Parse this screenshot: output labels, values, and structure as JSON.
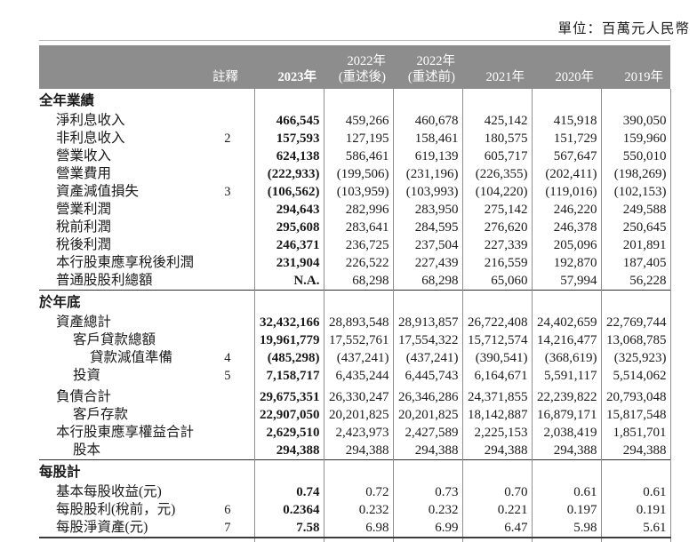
{
  "unit_label": "單位：百萬元人民幣",
  "colors": {
    "header_bar": "#8d8d8d",
    "header_text": "#ffffff",
    "body_text": "#1a1a1a",
    "column_line": "#8f8f8f",
    "section_rule": "#2e2e2e",
    "bottom_rule": "#3c3c3c",
    "top_rule": "#b5b5b5"
  },
  "table": {
    "header": [
      {
        "line1": "",
        "line2": "註釋"
      },
      {
        "line1": "",
        "line2": "2023年"
      },
      {
        "line1": "2022年",
        "line2": "(重述後)"
      },
      {
        "line1": "2022年",
        "line2": "(重述前)"
      },
      {
        "line1": "",
        "line2": "2021年"
      },
      {
        "line1": "",
        "line2": "2020年"
      },
      {
        "line1": "",
        "line2": "2019年"
      }
    ],
    "sections": [
      {
        "title": "全年業績",
        "rows": [
          {
            "label": "淨利息收入",
            "indent": 1,
            "note": "",
            "values": [
              "466,545",
              "459,266",
              "460,678",
              "425,142",
              "415,918",
              "390,050"
            ]
          },
          {
            "label": "非利息收入",
            "indent": 1,
            "note": "2",
            "values": [
              "157,593",
              "127,195",
              "158,461",
              "180,575",
              "151,729",
              "159,960"
            ]
          },
          {
            "label": "營業收入",
            "indent": 1,
            "note": "",
            "values": [
              "624,138",
              "586,461",
              "619,139",
              "605,717",
              "567,647",
              "550,010"
            ]
          },
          {
            "label": "營業費用",
            "indent": 1,
            "note": "",
            "values": [
              "(222,933)",
              "(199,506)",
              "(231,196)",
              "(226,355)",
              "(202,411)",
              "(198,269)"
            ]
          },
          {
            "label": "資產減值損失",
            "indent": 1,
            "note": "3",
            "values": [
              "(106,562)",
              "(103,959)",
              "(103,993)",
              "(104,220)",
              "(119,016)",
              "(102,153)"
            ]
          },
          {
            "label": "營業利潤",
            "indent": 1,
            "note": "",
            "values": [
              "294,643",
              "282,996",
              "283,950",
              "275,142",
              "246,220",
              "249,588"
            ]
          },
          {
            "label": "稅前利潤",
            "indent": 1,
            "note": "",
            "values": [
              "295,608",
              "283,641",
              "284,595",
              "276,620",
              "246,378",
              "250,645"
            ]
          },
          {
            "label": "稅後利潤",
            "indent": 1,
            "note": "",
            "values": [
              "246,371",
              "236,725",
              "237,504",
              "227,339",
              "205,096",
              "201,891"
            ]
          },
          {
            "label": "本行股東應享稅後利潤",
            "indent": 1,
            "note": "",
            "values": [
              "231,904",
              "226,522",
              "227,439",
              "216,559",
              "192,870",
              "187,405"
            ]
          },
          {
            "label": "普通股股利總額",
            "indent": 1,
            "note": "",
            "values": [
              "N.A.",
              "68,298",
              "68,298",
              "65,060",
              "57,994",
              "56,228"
            ]
          }
        ]
      },
      {
        "title": "於年底",
        "rows": [
          {
            "label": "資產總計",
            "indent": 1,
            "note": "",
            "values": [
              "32,432,166",
              "28,893,548",
              "28,913,857",
              "26,722,408",
              "24,402,659",
              "22,769,744"
            ]
          },
          {
            "label": "客戶貸款總額",
            "indent": 2,
            "note": "",
            "values": [
              "19,961,779",
              "17,552,761",
              "17,554,322",
              "15,712,574",
              "14,216,477",
              "13,068,785"
            ]
          },
          {
            "label": "貸款減值準備",
            "indent": 3,
            "note": "4",
            "values": [
              "(485,298)",
              "(437,241)",
              "(437,241)",
              "(390,541)",
              "(368,619)",
              "(325,923)"
            ]
          },
          {
            "label": "投資",
            "indent": 2,
            "note": "5",
            "values": [
              "7,158,717",
              "6,435,244",
              "6,445,743",
              "6,164,671",
              "5,591,117",
              "5,514,062"
            ]
          },
          {
            "label": "負債合計",
            "indent": 1,
            "note": "",
            "gap": true,
            "values": [
              "29,675,351",
              "26,330,247",
              "26,346,286",
              "24,371,855",
              "22,239,822",
              "20,793,048"
            ]
          },
          {
            "label": "客戶存款",
            "indent": 2,
            "note": "",
            "values": [
              "22,907,050",
              "20,201,825",
              "20,201,825",
              "18,142,887",
              "16,879,171",
              "15,817,548"
            ]
          },
          {
            "label": "本行股東應享權益合計",
            "indent": 1,
            "note": "",
            "values": [
              "2,629,510",
              "2,423,973",
              "2,427,589",
              "2,225,153",
              "2,038,419",
              "1,851,701"
            ]
          },
          {
            "label": "股本",
            "indent": 2,
            "note": "",
            "values": [
              "294,388",
              "294,388",
              "294,388",
              "294,388",
              "294,388",
              "294,388"
            ]
          }
        ]
      },
      {
        "title": "每股計",
        "rows": [
          {
            "label": "基本每股收益(元)",
            "indent": 1,
            "note": "",
            "values": [
              "0.74",
              "0.72",
              "0.73",
              "0.70",
              "0.61",
              "0.61"
            ]
          },
          {
            "label": "每股股利(稅前，元)",
            "indent": 1,
            "note": "6",
            "values": [
              "0.2364",
              "0.232",
              "0.232",
              "0.221",
              "0.197",
              "0.191"
            ]
          },
          {
            "label": "每股淨資產(元)",
            "indent": 1,
            "note": "7",
            "values": [
              "7.58",
              "6.98",
              "6.99",
              "6.47",
              "5.98",
              "5.61"
            ]
          }
        ]
      }
    ]
  }
}
